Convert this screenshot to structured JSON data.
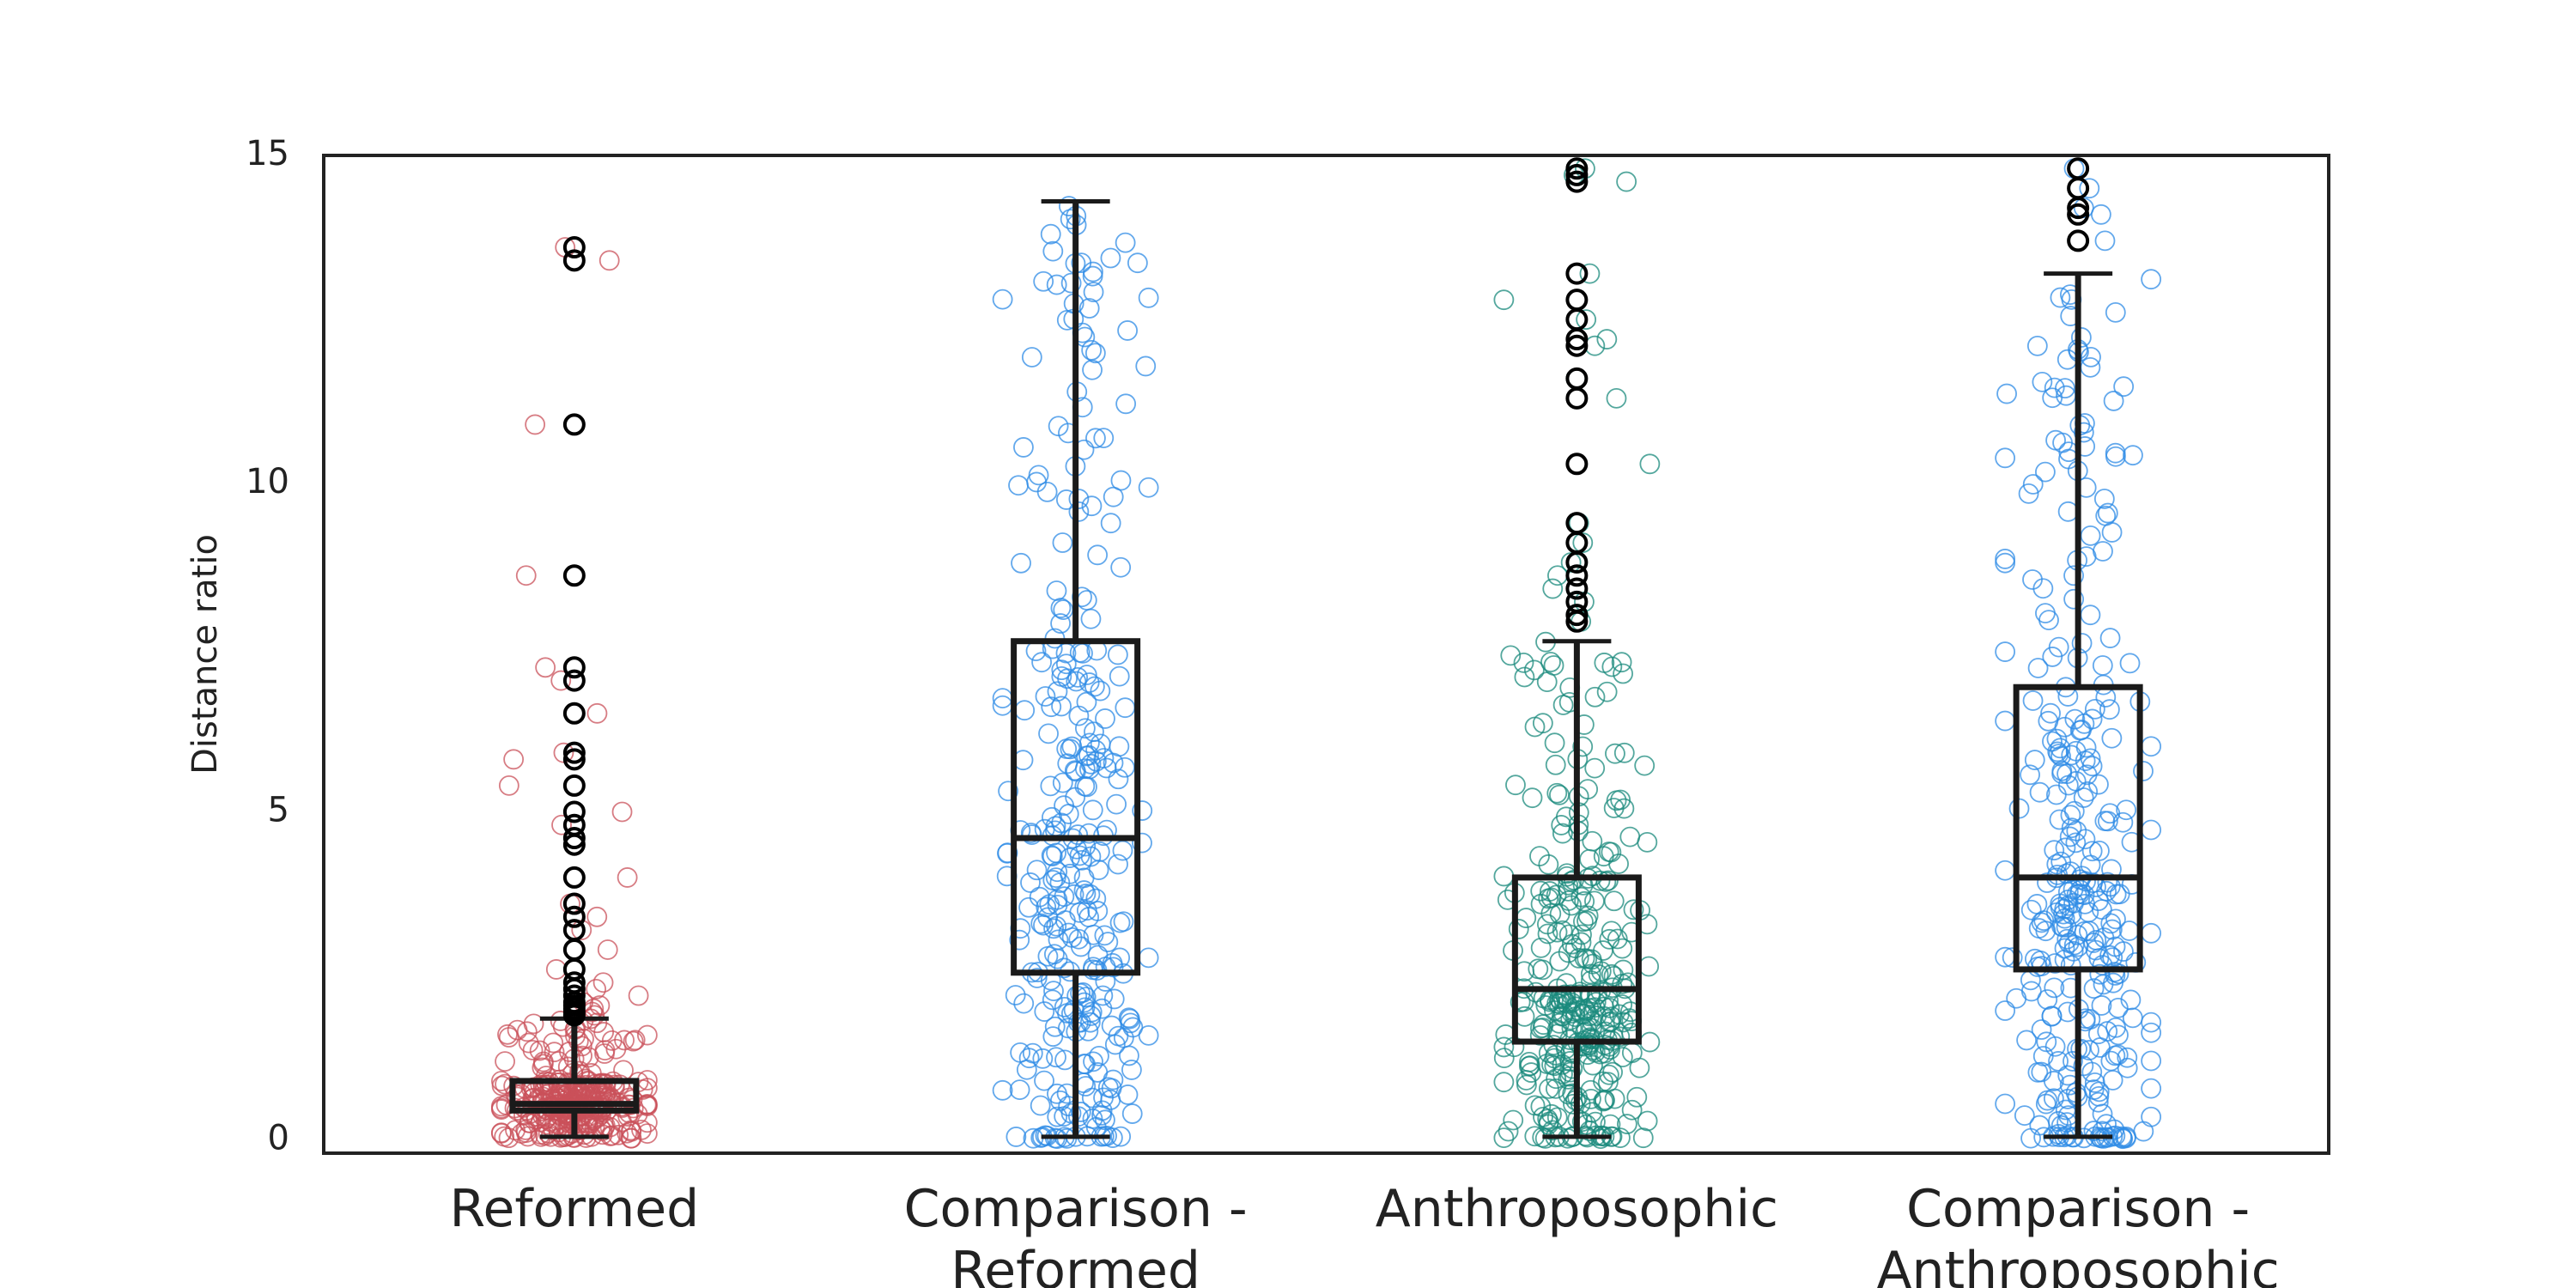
{
  "chart_data": {
    "type": "box",
    "ylabel": "Distance ratio",
    "ylim": [
      -0.2,
      15
    ],
    "yticks": [
      0,
      5,
      10,
      15
    ],
    "grid": false,
    "categories": [
      {
        "label_lines": [
          "Reformed"
        ],
        "color": "#c9505a"
      },
      {
        "label_lines": [
          "Comparison -",
          "Reformed"
        ],
        "color": "#2e8be6"
      },
      {
        "label_lines": [
          "Anthroposophic"
        ],
        "color": "#1a8a7c"
      },
      {
        "label_lines": [
          "Comparison -",
          "Anthroposophic"
        ],
        "color": "#2e8be6"
      }
    ],
    "boxes": [
      {
        "whisker_low": 0.05,
        "q1": 0.45,
        "median": 0.55,
        "q3": 0.9,
        "whisker_high": 1.85,
        "outliers": [
          1.9,
          1.95,
          2.0,
          2.05,
          2.1,
          2.2,
          2.3,
          2.4,
          2.6,
          2.9,
          3.2,
          3.4,
          3.6,
          4.0,
          4.5,
          4.6,
          4.8,
          5.0,
          5.4,
          5.8,
          5.9,
          6.5,
          7.0,
          7.2,
          8.6,
          10.9,
          13.4,
          13.6
        ]
      },
      {
        "whisker_low": 0.05,
        "q1": 2.55,
        "median": 4.6,
        "q3": 7.6,
        "whisker_high": 14.3,
        "outliers": []
      },
      {
        "whisker_low": 0.05,
        "q1": 1.5,
        "median": 2.3,
        "q3": 4.0,
        "whisker_high": 7.6,
        "outliers": [
          7.9,
          8.0,
          8.2,
          8.4,
          8.6,
          8.8,
          9.1,
          9.4,
          10.3,
          11.3,
          11.6,
          12.1,
          12.2,
          12.5,
          12.8,
          13.2,
          14.6,
          14.7,
          14.8
        ]
      },
      {
        "whisker_low": 0.05,
        "q1": 2.6,
        "median": 4.0,
        "q3": 6.9,
        "whisker_high": 13.2,
        "outliers": [
          13.7,
          14.1,
          14.2,
          14.5,
          14.8
        ]
      }
    ]
  }
}
